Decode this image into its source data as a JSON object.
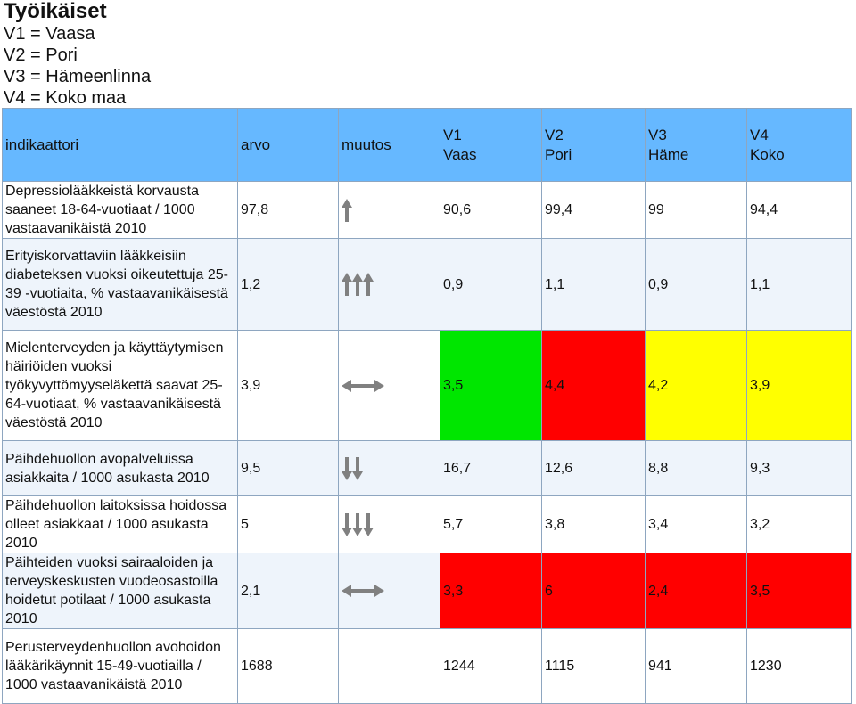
{
  "title": "Työikäiset",
  "legend": [
    "V1 = Vaasa",
    "V2 = Pori",
    "V3 = Hämeenlinna",
    "V4 = Koko maa"
  ],
  "headers": {
    "indicator": "indikaattori",
    "value": "arvo",
    "change": "muutos",
    "v1": [
      "V1",
      "Vaas"
    ],
    "v2": [
      "V2",
      "Pori"
    ],
    "v3": [
      "V3",
      "Häme"
    ],
    "v4": [
      "V4",
      "Koko"
    ]
  },
  "colors": {
    "header": "#66b8ff",
    "green": "#00e600",
    "red": "#ff0000",
    "yellow": "#ffff00",
    "arrow": "#808080"
  },
  "rows": [
    {
      "label": "Depressiolääkkeistä korvausta saaneet 18-64-vuotiaat / 1000 vastaavanikäistä 2010",
      "value": "97,8",
      "change_icon": "arrow-up-icon",
      "v1": "90,6",
      "v2": "99,4",
      "v3": "99",
      "v4": "94,4",
      "highlight": [
        null,
        null,
        null,
        null
      ]
    },
    {
      "label": "Erityiskorvattaviin lääkkeisiin diabeteksen vuoksi oikeutettuja 25-39 -vuotiaita, % vastaavanikäisestä väestöstä 2010",
      "value": "1,2",
      "change_icon": "triple-arrow-up-icon",
      "v1": "0,9",
      "v2": "1,1",
      "v3": "0,9",
      "v4": "1,1",
      "highlight": [
        null,
        null,
        null,
        null
      ]
    },
    {
      "label": "Mielenterveyden ja käyttäytymisen häiriöiden vuoksi työkyvyttömyyseläkettä saavat 25-64-vuotiaat, % vastaavanikäisestä väestöstä 2010",
      "value": "3,9",
      "change_icon": "left-right-arrow-icon",
      "v1": "3,5",
      "v2": "4,4",
      "v3": "4,2",
      "v4": "3,9",
      "highlight": [
        "green",
        "red",
        "yellow",
        "yellow"
      ]
    },
    {
      "label": "Päihdehuollon avopalveluissa asiakkaita / 1000 asukasta 2010",
      "value": "9,5",
      "change_icon": "double-arrow-down-icon",
      "v1": "16,7",
      "v2": "12,6",
      "v3": "8,8",
      "v4": "9,3",
      "highlight": [
        null,
        null,
        null,
        null
      ]
    },
    {
      "label": "Päihdehuollon laitoksissa hoidossa olleet asiakkaat / 1000 asukasta 2010",
      "value": "5",
      "change_icon": "triple-arrow-down-icon",
      "v1": "5,7",
      "v2": "3,8",
      "v3": "3,4",
      "v4": "3,2",
      "highlight": [
        null,
        null,
        null,
        null
      ]
    },
    {
      "label": "Päihteiden vuoksi sairaaloiden ja terveyskeskusten vuodeosastoilla hoidetut potilaat / 1000 asukasta 2010",
      "value": "2,1",
      "change_icon": "left-right-arrow-icon",
      "v1": "3,3",
      "v2": "6",
      "v3": "2,4",
      "v4": "3,5",
      "highlight": [
        "red",
        "red",
        "red",
        "red"
      ]
    },
    {
      "label": "Perusterveydenhuollon avohoidon lääkärikäynnit 15-49-vuotiailla / 1000 vastaavanikäistä 2010",
      "value": "1688",
      "change_icon": null,
      "v1": "1244",
      "v2": "1115",
      "v3": "941",
      "v4": "1230",
      "highlight": [
        null,
        null,
        null,
        null
      ]
    }
  ]
}
